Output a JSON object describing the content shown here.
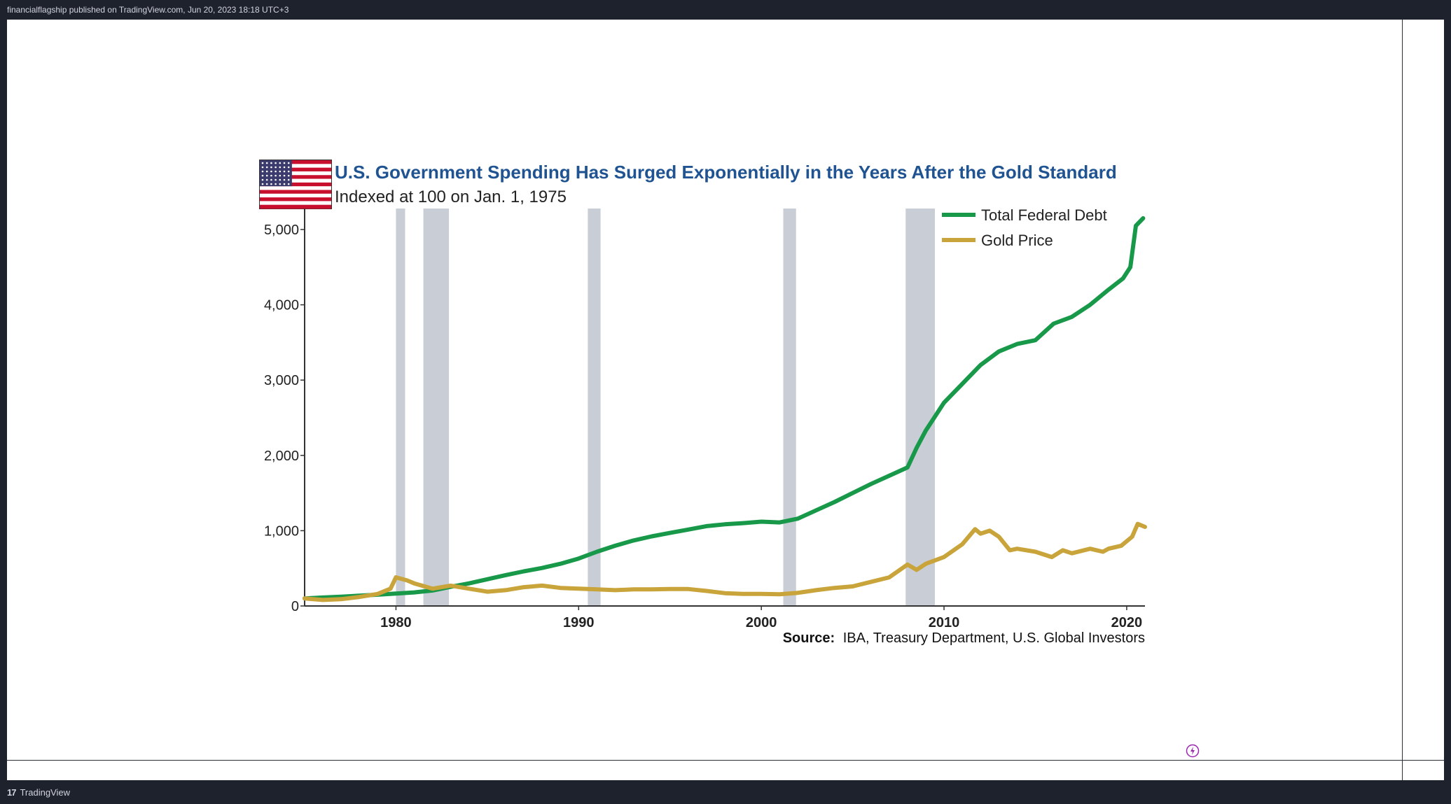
{
  "header": {
    "publish_info": "financialflagship published on TradingView.com, Jun 20, 2023 18:18 UTC+3"
  },
  "footer": {
    "brand": "TradingView"
  },
  "chart_data": {
    "type": "line",
    "title": "U.S. Government Spending Has Surged Exponentially in the Years After the Gold Standard",
    "subtitle": "Indexed at 100 on Jan. 1, 1975",
    "source_label": "Source:",
    "source_text": "IBA, Treasury Department, U.S. Global Investors",
    "xlim": [
      1975,
      2021
    ],
    "ylim": [
      0,
      5300
    ],
    "x_ticks": [
      1980,
      1990,
      2000,
      2010,
      2020
    ],
    "y_ticks": [
      {
        "value": 0,
        "label": "0"
      },
      {
        "value": 1000,
        "label": "1,000"
      },
      {
        "value": 2000,
        "label": "2,000"
      },
      {
        "value": 3000,
        "label": "3,000"
      },
      {
        "value": 4000,
        "label": "4,000"
      },
      {
        "value": 5000,
        "label": "5,000"
      }
    ],
    "recessions": [
      [
        1980.0,
        1980.5
      ],
      [
        1981.5,
        1982.9
      ],
      [
        1990.5,
        1991.2
      ],
      [
        2001.2,
        2001.9
      ],
      [
        2007.9,
        2009.5
      ]
    ],
    "series": [
      {
        "name": "Total Federal Debt",
        "color": "#18994a",
        "x": [
          1975,
          1976,
          1977,
          1978,
          1979,
          1980,
          1981,
          1982,
          1983,
          1984,
          1985,
          1986,
          1987,
          1988,
          1989,
          1990,
          1991,
          1992,
          1993,
          1994,
          1995,
          1996,
          1997,
          1998,
          1999,
          2000,
          2001,
          2002,
          2003,
          2004,
          2005,
          2006,
          2007,
          2008,
          2008.5,
          2009,
          2010,
          2011,
          2012,
          2013,
          2014,
          2015,
          2016,
          2017,
          2018,
          2019,
          2019.8,
          2020.2,
          2020.5,
          2020.9
        ],
        "values": [
          100,
          112,
          124,
          138,
          150,
          165,
          180,
          205,
          255,
          300,
          355,
          410,
          460,
          505,
          560,
          630,
          720,
          800,
          870,
          925,
          970,
          1015,
          1060,
          1085,
          1100,
          1120,
          1110,
          1160,
          1270,
          1380,
          1500,
          1620,
          1730,
          1840,
          2100,
          2330,
          2700,
          2950,
          3200,
          3380,
          3480,
          3530,
          3750,
          3840,
          4000,
          4200,
          4350,
          4500,
          5050,
          5150
        ]
      },
      {
        "name": "Gold Price",
        "color": "#c9a43b",
        "x": [
          1975,
          1976,
          1977,
          1978,
          1979,
          1979.7,
          1980,
          1980.6,
          1981,
          1982,
          1983,
          1984,
          1985,
          1986,
          1987,
          1988,
          1989,
          1990,
          1991,
          1992,
          1993,
          1994,
          1995,
          1996,
          1997,
          1998,
          1999,
          2000,
          2001,
          2002,
          2003,
          2004,
          2005,
          2006,
          2007,
          2008,
          2008.5,
          2009,
          2010,
          2011,
          2011.7,
          2012,
          2012.5,
          2013,
          2013.6,
          2014,
          2015,
          2015.9,
          2016.5,
          2017,
          2018,
          2018.7,
          2019,
          2019.7,
          2020.3,
          2020.6,
          2021
        ],
        "values": [
          100,
          80,
          90,
          120,
          160,
          230,
          380,
          340,
          300,
          230,
          270,
          230,
          190,
          210,
          250,
          270,
          240,
          230,
          220,
          210,
          220,
          220,
          225,
          225,
          200,
          170,
          160,
          160,
          155,
          175,
          210,
          240,
          260,
          320,
          380,
          550,
          480,
          560,
          650,
          820,
          1020,
          960,
          1000,
          920,
          740,
          760,
          720,
          650,
          740,
          700,
          760,
          720,
          760,
          800,
          920,
          1090,
          1050
        ]
      }
    ]
  }
}
